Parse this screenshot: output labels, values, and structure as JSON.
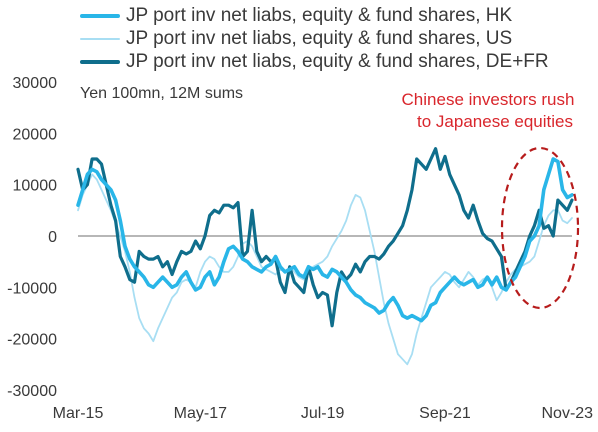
{
  "chart_data": {
    "type": "line",
    "subtitle": "Yen 100mn, 12M sums",
    "ylim": [
      -30000,
      30000
    ],
    "y_ticks": [
      "30000",
      "20000",
      "10000",
      "0",
      "-10000",
      "-20000",
      "-30000"
    ],
    "x_ticks": [
      "Mar-15",
      "May-17",
      "Jul-19",
      "Sep-21",
      "Nov-23"
    ],
    "x": [
      "Mar-15",
      "Apr-15",
      "May-15",
      "Jun-15",
      "Jul-15",
      "Aug-15",
      "Sep-15",
      "Oct-15",
      "Nov-15",
      "Dec-15",
      "Jan-16",
      "Feb-16",
      "Mar-16",
      "Apr-16",
      "May-16",
      "Jun-16",
      "Jul-16",
      "Aug-16",
      "Sep-16",
      "Oct-16",
      "Nov-16",
      "Dec-16",
      "Jan-17",
      "Feb-17",
      "Mar-17",
      "Apr-17",
      "May-17",
      "Jun-17",
      "Jul-17",
      "Aug-17",
      "Sep-17",
      "Oct-17",
      "Nov-17",
      "Dec-17",
      "Jan-18",
      "Feb-18",
      "Mar-18",
      "Apr-18",
      "May-18",
      "Jun-18",
      "Jul-18",
      "Aug-18",
      "Sep-18",
      "Oct-18",
      "Nov-18",
      "Dec-18",
      "Jan-19",
      "Feb-19",
      "Mar-19",
      "Apr-19",
      "May-19",
      "Jun-19",
      "Jul-19",
      "Aug-19",
      "Sep-19",
      "Oct-19",
      "Nov-19",
      "Dec-19",
      "Jan-20",
      "Feb-20",
      "Mar-20",
      "Apr-20",
      "May-20",
      "Jun-20",
      "Jul-20",
      "Aug-20",
      "Sep-20",
      "Oct-20",
      "Nov-20",
      "Dec-20",
      "Jan-21",
      "Feb-21",
      "Mar-21",
      "Apr-21",
      "May-21",
      "Jun-21",
      "Jul-21",
      "Aug-21",
      "Sep-21",
      "Oct-21",
      "Nov-21",
      "Dec-21",
      "Jan-22",
      "Feb-22",
      "Mar-22",
      "Apr-22",
      "May-22",
      "Jun-22",
      "Jul-22",
      "Aug-22",
      "Sep-22",
      "Oct-22",
      "Nov-22",
      "Dec-22",
      "Jan-23",
      "Feb-23",
      "Mar-23",
      "Apr-23",
      "May-23",
      "Jun-23",
      "Jul-23",
      "Aug-23",
      "Sep-23",
      "Oct-23",
      "Nov-23",
      "Dec-23"
    ],
    "series": [
      {
        "name": "JP port inv net liabs, equity & fund shares, HK",
        "color": "#29b6e8",
        "width": 3.6,
        "values": [
          6000,
          9000,
          12000,
          13000,
          12500,
          11000,
          10000,
          9000,
          7000,
          3000,
          -2000,
          -4500,
          -6000,
          -7000,
          -8000,
          -9500,
          -10000,
          -9000,
          -8000,
          -9000,
          -10000,
          -9500,
          -8000,
          -7000,
          -9000,
          -10500,
          -10000,
          -8000,
          -7000,
          -9500,
          -8000,
          -5000,
          -2500,
          -2000,
          -3000,
          -4500,
          -5000,
          -6000,
          -6500,
          -7000,
          -6000,
          -5500,
          -4000,
          -6000,
          -7000,
          -6500,
          -6000,
          -7500,
          -8000,
          -6000,
          -6500,
          -6000,
          -7500,
          -8000,
          -6500,
          -7000,
          -8000,
          -9000,
          -10500,
          -11500,
          -12000,
          -13000,
          -13500,
          -14000,
          -15000,
          -14500,
          -13000,
          -12000,
          -13500,
          -15500,
          -16000,
          -15500,
          -16000,
          -16500,
          -15500,
          -13500,
          -13000,
          -11000,
          -10000,
          -9000,
          -8000,
          -9000,
          -9500,
          -9000,
          -8500,
          -10000,
          -9500,
          -8000,
          -9500,
          -8000,
          -10000,
          -10500,
          -9000,
          -8000,
          -6000,
          -4000,
          -1000,
          0,
          2000,
          9000,
          12000,
          15000,
          14500,
          9000,
          7500,
          8000
        ]
      },
      {
        "name": "JP port inv net liabs, equity & fund shares, US",
        "color": "#a8def3",
        "width": 1.8,
        "values": [
          5000,
          8000,
          10000,
          12000,
          11000,
          9000,
          7000,
          5000,
          2500,
          0,
          -3000,
          -7000,
          -12000,
          -16000,
          -18000,
          -19000,
          -20500,
          -18000,
          -16000,
          -14000,
          -12000,
          -11000,
          -9000,
          -8500,
          -9000,
          -10000,
          -7000,
          -5000,
          -4000,
          -4500,
          -6000,
          -7000,
          -7000,
          -6000,
          -4000,
          -1500,
          -1000,
          -2000,
          -4000,
          -6000,
          -6500,
          -7000,
          -7500,
          -6500,
          -7000,
          -6000,
          -7000,
          -8000,
          -8500,
          -7000,
          -6000,
          -5500,
          -5000,
          -4000,
          -2000,
          -500,
          1000,
          3000,
          6000,
          8000,
          7500,
          5000,
          1000,
          -3000,
          -8000,
          -13000,
          -17000,
          -20000,
          -23000,
          -24000,
          -25000,
          -23000,
          -19000,
          -16000,
          -13000,
          -10000,
          -9000,
          -8000,
          -7000,
          -7500,
          -9000,
          -10000,
          -8500,
          -7000,
          -8000,
          -9500,
          -8500,
          -8000,
          -10000,
          -12500,
          -11000,
          -9000,
          -7500,
          -6500,
          -6000,
          -5500,
          -5000,
          -4000,
          -1000,
          2000,
          4000,
          5000,
          5000,
          3000,
          2500,
          3500
        ]
      },
      {
        "name": "JP port inv net liabs, equity & fund shares, DE+FR",
        "color": "#0f6e8c",
        "width": 3.2,
        "values": [
          13000,
          9000,
          10000,
          15000,
          15000,
          14000,
          10000,
          6000,
          3000,
          -4000,
          -6000,
          -8500,
          -9000,
          -3000,
          -4000,
          -4500,
          -4500,
          -4000,
          -6000,
          -5000,
          -7500,
          -5000,
          -3000,
          -3500,
          -3000,
          -1000,
          -2500,
          0,
          4000,
          5000,
          4500,
          6000,
          6000,
          5500,
          6500,
          -4000,
          -3000,
          5000,
          -3000,
          -5000,
          -4000,
          -5000,
          -4500,
          -9000,
          -11000,
          -6000,
          -9000,
          -10000,
          -11000,
          -6000,
          -9500,
          -12000,
          -11000,
          -11500,
          -17500,
          -11000,
          -7000,
          -8500,
          -7500,
          -5500,
          -7000,
          -5000,
          -4000,
          -4000,
          -4500,
          -3500,
          -2000,
          -1000,
          500,
          2000,
          5000,
          9000,
          15000,
          14000,
          13000,
          15000,
          17000,
          13000,
          15500,
          12000,
          10000,
          8000,
          5000,
          3500,
          6000,
          3000,
          500,
          -500,
          -1000,
          -2500,
          -4000,
          -10500,
          -9000,
          -7000,
          -5000,
          -3000,
          0,
          2000,
          5000,
          1500,
          2000,
          0,
          7000,
          6000,
          5000,
          7000
        ]
      }
    ],
    "annotation": {
      "text_line1": "Chinese investors rush",
      "text_line2": "to Japanese equities",
      "color": "#d9262c"
    }
  }
}
